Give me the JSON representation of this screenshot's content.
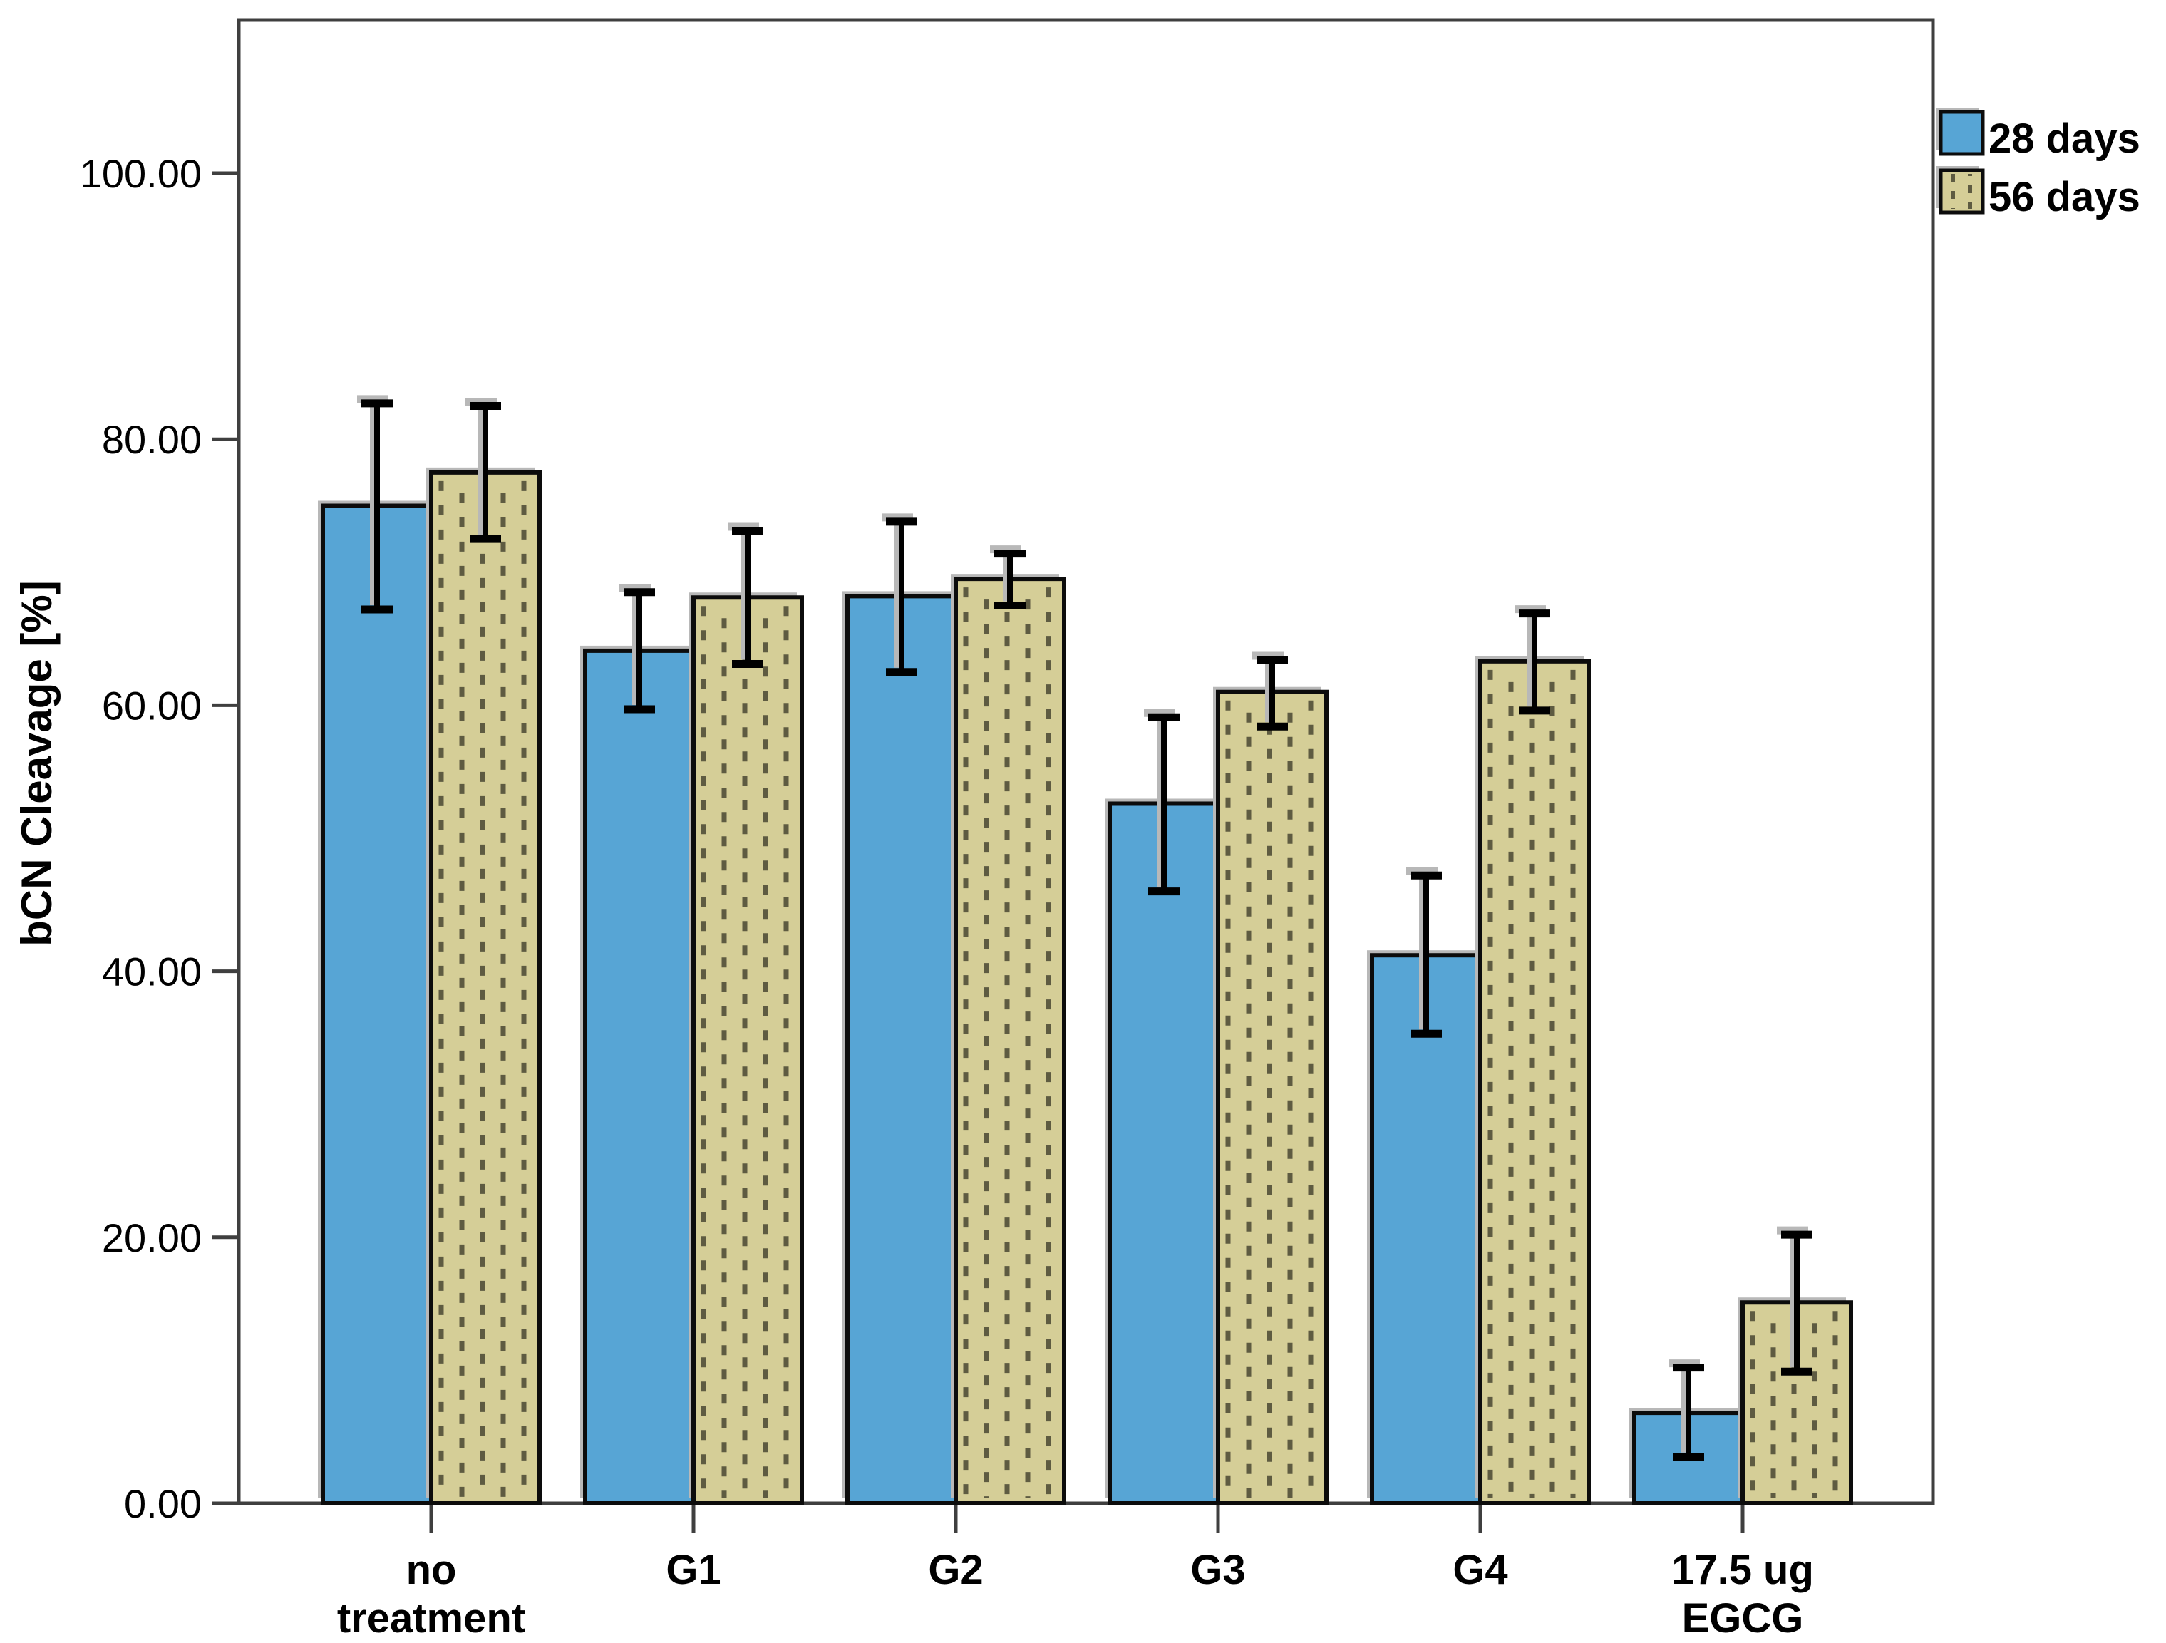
{
  "chart_data": {
    "type": "bar",
    "title": "",
    "xlabel": "",
    "ylabel": "bCN Cleavage [%]",
    "ylim": [
      0,
      111
    ],
    "yticks": [
      0,
      20,
      40,
      60,
      80,
      100
    ],
    "ytick_labels": [
      "0.00",
      "20.00",
      "40.00",
      "60.00",
      "80.00",
      "100.00"
    ],
    "categories": [
      "no treatment",
      "G1",
      "G2",
      "G3",
      "G4",
      "17.5 ug EGCG"
    ],
    "category_label_lines": [
      [
        "no",
        "treatment"
      ],
      [
        "G1"
      ],
      [
        "G2"
      ],
      [
        "G3"
      ],
      [
        "G4"
      ],
      [
        "17.5 ug",
        "EGCG"
      ]
    ],
    "grid": false,
    "legend_position": "top-right-outside",
    "error_bars": true,
    "series": [
      {
        "name": "28 days",
        "pattern": "solid",
        "color": "#57a5d5",
        "values": [
          75.0,
          64.1,
          68.2,
          52.6,
          41.2,
          6.8
        ],
        "error_low": [
          67.2,
          59.7,
          62.5,
          46.0,
          35.3,
          3.5
        ],
        "error_high": [
          82.7,
          68.5,
          73.8,
          59.1,
          47.2,
          10.2
        ]
      },
      {
        "name": "56 days",
        "pattern": "vertical-dashes",
        "color": "#d5ce97",
        "pattern_color": "#5e5b41",
        "values": [
          77.5,
          68.1,
          69.5,
          61.0,
          63.3,
          15.1
        ],
        "error_low": [
          72.5,
          63.1,
          67.5,
          58.4,
          59.6,
          9.9
        ],
        "error_high": [
          82.5,
          73.1,
          71.4,
          63.4,
          66.9,
          20.2
        ]
      }
    ],
    "colors": {
      "frame": "#3f3f3f",
      "bar_border": "#0c0c0c",
      "error_bar": "#000000",
      "shadow": "#b8b8b8",
      "background": "#ffffff"
    }
  }
}
